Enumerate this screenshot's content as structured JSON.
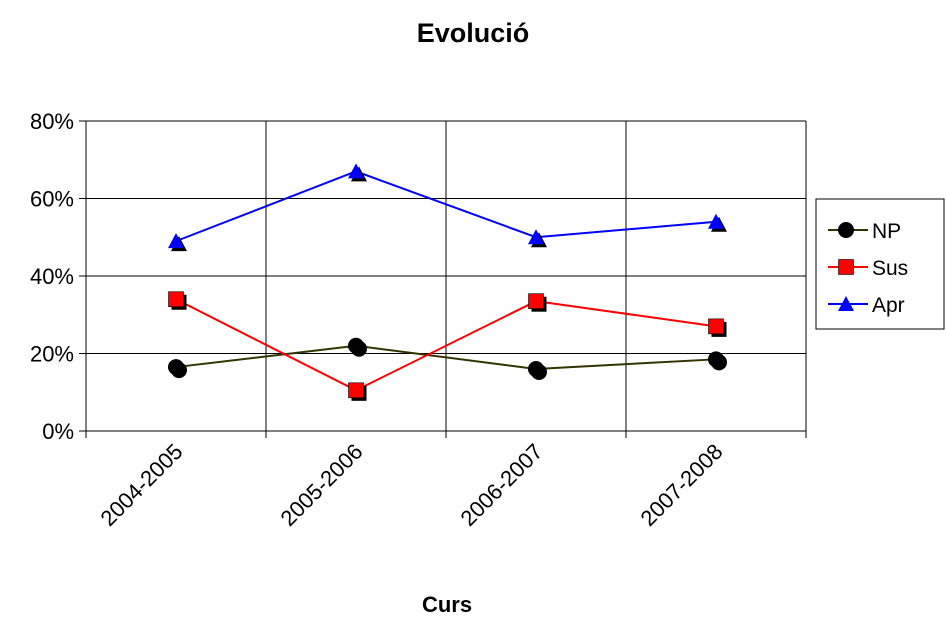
{
  "chart_data": {
    "type": "line",
    "title": "Evolució",
    "xlabel": "Curs",
    "ylabel": "",
    "categories": [
      "2004-2005",
      "2005-2006",
      "2006-2007",
      "2007-2008"
    ],
    "ylim": [
      0,
      0.8
    ],
    "yticks": [
      "0%",
      "20%",
      "40%",
      "60%",
      "80%"
    ],
    "grid": true,
    "legend_position": "right",
    "series": [
      {
        "name": "NP",
        "color": "#333300",
        "marker": "circle",
        "values": [
          0.165,
          0.22,
          0.16,
          0.185
        ]
      },
      {
        "name": "Sus",
        "color": "#ff0000",
        "marker": "square",
        "values": [
          0.34,
          0.105,
          0.335,
          0.27
        ]
      },
      {
        "name": "Apr",
        "color": "#0000ff",
        "marker": "triangle",
        "values": [
          0.49,
          0.67,
          0.5,
          0.54
        ]
      }
    ]
  }
}
